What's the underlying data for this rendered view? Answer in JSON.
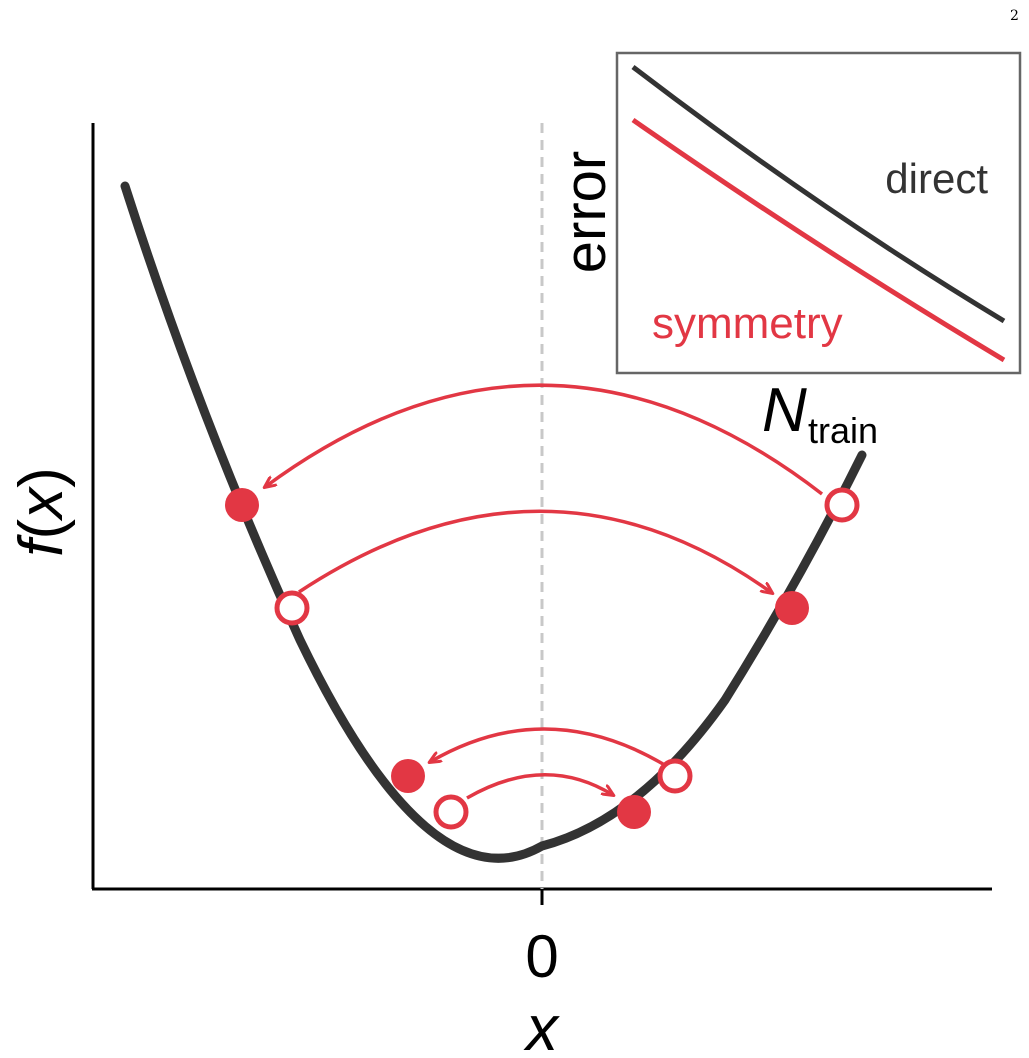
{
  "page_number": "2",
  "main_plot": {
    "x_label": "x",
    "y_label": "f(x)",
    "x_tick": "0",
    "colors": {
      "curve": "#333333",
      "accent": "#e23744",
      "symmetry_axis": "#c8c8c8"
    }
  },
  "inset": {
    "y_label": "error",
    "x_label_main": "N",
    "x_label_sub": "train",
    "line_direct": "direct",
    "line_symmetry": "symmetry",
    "colors": {
      "direct": "#333333",
      "symmetry": "#e23744",
      "frame": "#666666"
    }
  }
}
